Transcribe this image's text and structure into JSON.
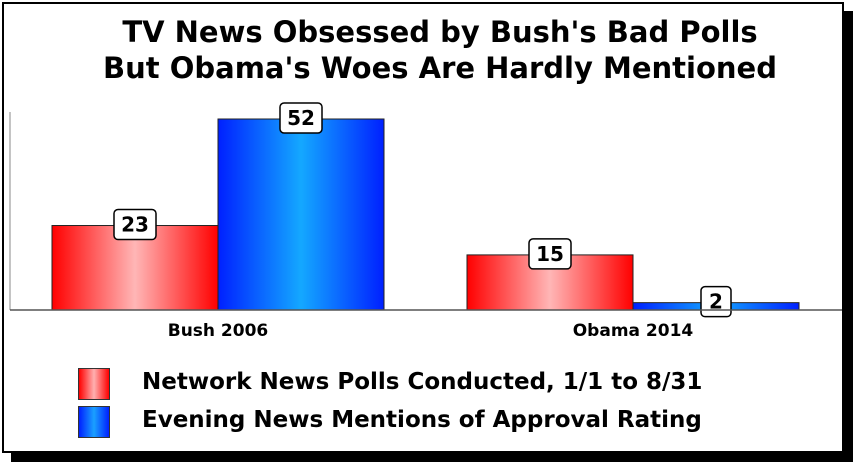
{
  "chart_data": {
    "type": "bar",
    "title": [
      "TV News Obsessed by Bush's Bad Polls",
      "But Obama's Woes Are Hardly Mentioned"
    ],
    "categories": [
      "Bush 2006",
      "Obama 2014"
    ],
    "series": [
      {
        "name": "Network News Polls Conducted, 1/1 to 8/31",
        "values": [
          23,
          15
        ],
        "color": "#ff0000"
      },
      {
        "name": "Evening News Mentions of Approval Rating",
        "values": [
          52,
          2
        ],
        "color": "#0030ff"
      }
    ],
    "ylim": [
      0,
      52
    ],
    "grid": false,
    "legend_position": "bottom-left"
  }
}
